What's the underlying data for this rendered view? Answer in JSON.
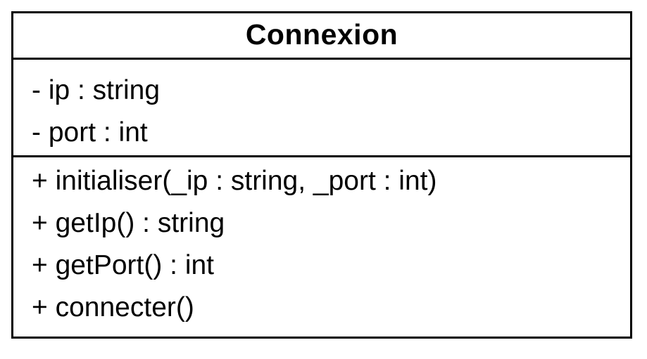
{
  "class": {
    "name": "Connexion",
    "attributes": [
      "- ip : string",
      "- port : int"
    ],
    "methods": [
      "+ initialiser(_ip : string, _port : int)",
      "+ getIp() : string",
      "+ getPort() : int",
      "+ connecter()"
    ]
  }
}
